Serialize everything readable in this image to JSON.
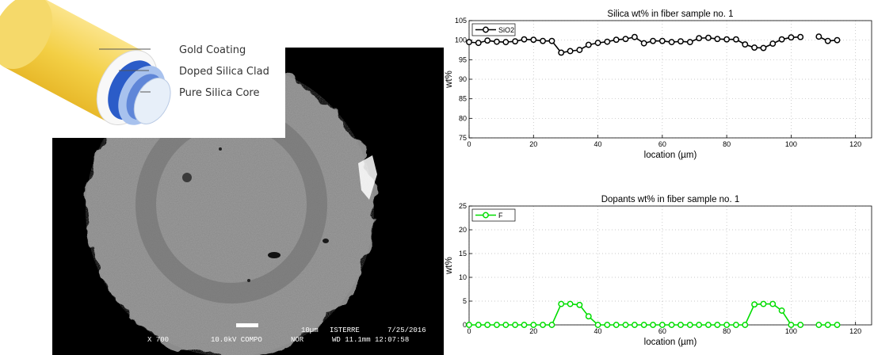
{
  "diagram": {
    "labels": [
      "Gold Coating",
      "Doped Silica Clad",
      "Pure Silica Core"
    ],
    "colors": {
      "gold": "#f3cf45",
      "clad_dark": "#2b5cc8",
      "clad_light": "#a8c2ee",
      "core": "#e7eff9"
    }
  },
  "micrograph": {
    "magnification": "X 700",
    "voltage": "10.0kV COMPO",
    "mode": "NOR",
    "scale": "10µm",
    "lab": "ISTERRE",
    "date": "7/25/2016",
    "wd_time": "WD 11.1mm 12:07:58"
  },
  "chart_data": [
    {
      "type": "line",
      "title": "Silica wt% in fiber sample no. 1",
      "xlabel": "location (µm)",
      "ylabel": "wt%",
      "xlim": [
        0,
        125
      ],
      "ylim": [
        75,
        105
      ],
      "xticks": [
        0,
        20,
        40,
        60,
        80,
        100,
        120
      ],
      "yticks": [
        75,
        80,
        85,
        90,
        95,
        100,
        105
      ],
      "grid": true,
      "legend": "top-left",
      "series": [
        {
          "name": "SiO2",
          "color": "#000000",
          "marker": "circle",
          "segments": [
            {
              "x": [
                0,
                2.9,
                5.7,
                8.6,
                11.4,
                14.3,
                17.1,
                20,
                22.9,
                25.7,
                28.6,
                31.4,
                34.3,
                37.1,
                40,
                42.9,
                45.7,
                48.6,
                51.4,
                54.3,
                57.1,
                60,
                62.9,
                65.7,
                68.6,
                71.4,
                74.3,
                77.1,
                80,
                82.9,
                85.7,
                88.6,
                91.4,
                94.3,
                97.1,
                100,
                102.9
              ],
              "y": [
                99.5,
                99.3,
                99.9,
                99.6,
                99.5,
                99.7,
                100.2,
                100.1,
                99.8,
                99.8,
                96.8,
                97.2,
                97.5,
                98.8,
                99.3,
                99.6,
                100.1,
                100.3,
                100.8,
                99.2,
                99.8,
                99.8,
                99.5,
                99.7,
                99.5,
                100.5,
                100.6,
                100.3,
                100.2,
                100.2,
                98.9,
                98.1,
                98.0,
                99.1,
                100.2,
                100.7,
                100.8
              ]
            },
            {
              "x": [
                108.6,
                111.4,
                114.3
              ],
              "y": [
                100.9,
                99.8,
                100.0
              ]
            }
          ]
        }
      ]
    },
    {
      "type": "line",
      "title": "Dopants wt% in fiber sample no. 1",
      "xlabel": "location (µm)",
      "ylabel": "wt%",
      "xlim": [
        0,
        125
      ],
      "ylim": [
        0,
        25
      ],
      "xticks": [
        0,
        20,
        40,
        60,
        80,
        100,
        120
      ],
      "yticks": [
        0,
        5,
        10,
        15,
        20,
        25
      ],
      "grid": true,
      "legend": "top-left",
      "series": [
        {
          "name": "F",
          "color": "#00dd00",
          "marker": "circle",
          "segments": [
            {
              "x": [
                0,
                2.9,
                5.7,
                8.6,
                11.4,
                14.3,
                17.1,
                20,
                22.9,
                25.7,
                28.6,
                31.4,
                34.3,
                37.1,
                40,
                42.9,
                45.7,
                48.6,
                51.4,
                54.3,
                57.1,
                60,
                62.9,
                65.7,
                68.6,
                71.4,
                74.3,
                77.1,
                80,
                82.9,
                85.7,
                88.6,
                91.4,
                94.3,
                97.1,
                100,
                102.9
              ],
              "y": [
                0,
                0,
                0,
                0,
                0,
                0,
                0,
                0,
                0,
                0,
                4.4,
                4.4,
                4.2,
                1.8,
                0,
                0,
                0,
                0,
                0,
                0,
                0,
                0,
                0,
                0,
                0,
                0,
                0,
                0,
                0,
                0,
                0,
                4.3,
                4.4,
                4.4,
                3.0,
                0,
                0
              ]
            },
            {
              "x": [
                108.6,
                111.4,
                114.3
              ],
              "y": [
                0,
                0,
                0
              ]
            }
          ]
        }
      ]
    }
  ]
}
